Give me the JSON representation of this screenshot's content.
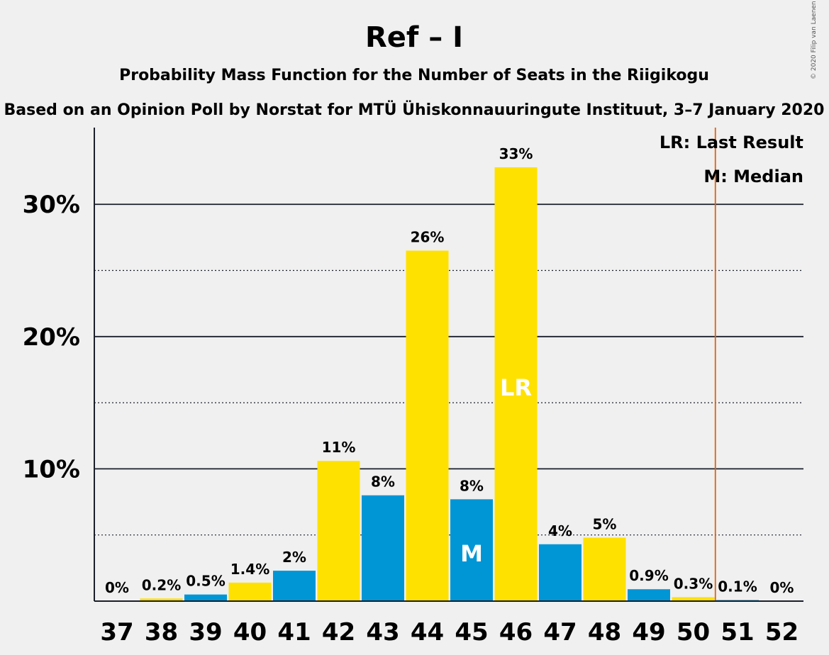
{
  "title": "Ref – I",
  "subtitle": "Probability Mass Function for the Number of Seats in the Riigikogu",
  "source_line": "Based on an Opinion Poll by Norstat for MTÜ Ühiskonnauuringute Instituut, 3–7 January 2020",
  "copyright": "© 2020 Filip van Laenen",
  "legend": {
    "last_result": "LR: Last Result",
    "median": "M: Median"
  },
  "colors": {
    "blue": "#0096d6",
    "yellow": "#ffe100",
    "last_result_line": "#e0600e",
    "axis": "#1a1f2b"
  },
  "chart_data": {
    "type": "bar",
    "categories": [
      "37",
      "38",
      "39",
      "40",
      "41",
      "42",
      "43",
      "44",
      "45",
      "46",
      "47",
      "48",
      "49",
      "50",
      "51",
      "52"
    ],
    "values": [
      0,
      0.2,
      0.5,
      1.4,
      2.3,
      10.6,
      8.0,
      26.5,
      7.7,
      32.8,
      4.3,
      4.8,
      0.9,
      0.3,
      0.05,
      0
    ],
    "value_labels": [
      "0%",
      "0.2%",
      "0.5%",
      "1.4%",
      "2%",
      "11%",
      "8%",
      "26%",
      "8%",
      "33%",
      "4%",
      "5%",
      "0.9%",
      "0.3%",
      "0.1%",
      "0%"
    ],
    "bar_colors": [
      "blue",
      "yellow",
      "blue",
      "yellow",
      "blue",
      "yellow",
      "blue",
      "yellow",
      "blue",
      "yellow",
      "blue",
      "yellow",
      "blue",
      "yellow",
      "blue",
      "yellow"
    ],
    "y_ticks": [
      {
        "value": 10,
        "label": "10%"
      },
      {
        "value": 20,
        "label": "20%"
      },
      {
        "value": 30,
        "label": "30%"
      }
    ],
    "minor_gridlines": [
      5,
      15,
      25
    ],
    "ylim": [
      0,
      35.8
    ],
    "median_seat": "45",
    "median_marker": "M",
    "last_result_seat": "46",
    "last_result_marker": "LR",
    "majority_line_after_seat": "50",
    "grid": true,
    "legend_position": "top-right"
  }
}
